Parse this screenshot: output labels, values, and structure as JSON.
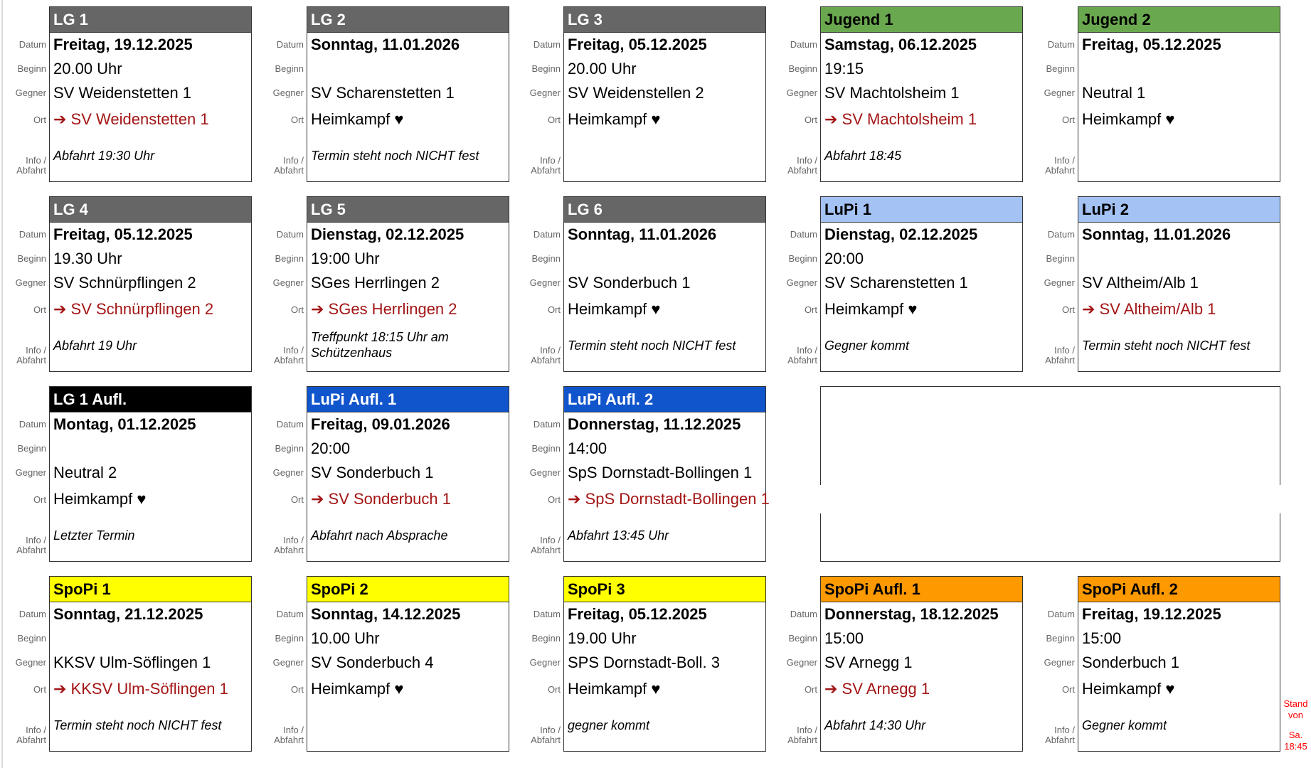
{
  "labels": {
    "datum": "Datum",
    "beginn": "Beginn",
    "gegner": "Gegner",
    "ort": "Ort",
    "info1": "Info /",
    "info2": "Abfahrt"
  },
  "cards": [
    {
      "team": "LG 1",
      "header_color": "#666666",
      "header_text": "#ffffff",
      "datum": "Freitag, 19.12.2025",
      "beginn": "20.00 Uhr",
      "gegner": "SV Weidenstetten 1",
      "ort": "➔ SV Weidenstetten 1",
      "away": true,
      "info": "Abfahrt 19:30 Uhr"
    },
    {
      "team": "LG 2",
      "header_color": "#666666",
      "header_text": "#ffffff",
      "datum": "Sonntag, 11.01.2026",
      "beginn": "",
      "gegner": "SV Scharenstetten 1",
      "ort": "Heimkampf ♥",
      "away": false,
      "info": "Termin steht noch NICHT fest"
    },
    {
      "team": "LG 3",
      "header_color": "#666666",
      "header_text": "#ffffff",
      "datum": "Freitag, 05.12.2025",
      "beginn": "20.00 Uhr",
      "gegner": "SV Weidenstellen 2",
      "ort": "Heimkampf ♥",
      "away": false,
      "info": ""
    },
    {
      "team": "Jugend 1",
      "header_color": "#6aa84f",
      "header_text": "#000000",
      "datum": "Samstag, 06.12.2025",
      "beginn": "19:15",
      "gegner": "SV Machtolsheim 1",
      "ort": "➔ SV Machtolsheim 1",
      "away": true,
      "info": "Abfahrt 18:45"
    },
    {
      "team": "Jugend 2",
      "header_color": "#6aa84f",
      "header_text": "#000000",
      "datum": "Freitag, 05.12.2025",
      "beginn": "",
      "gegner": "Neutral 1",
      "ort": "Heimkampf ♥",
      "away": false,
      "info": ""
    },
    {
      "team": "LG 4",
      "header_color": "#666666",
      "header_text": "#ffffff",
      "datum": "Freitag, 05.12.2025",
      "beginn": "19.30 Uhr",
      "gegner": "SV Schnürpflingen 2",
      "ort": "➔ SV Schnürpflingen 2",
      "away": true,
      "info": "Abfahrt 19 Uhr"
    },
    {
      "team": "LG 5",
      "header_color": "#666666",
      "header_text": "#ffffff",
      "datum": "Dienstag, 02.12.2025",
      "beginn": "19:00 Uhr",
      "gegner": "SGes Herrlingen 2",
      "ort": "➔ SGes Herrlingen 2",
      "away": true,
      "info": "Treffpunkt 18:15 Uhr am Schützenhaus"
    },
    {
      "team": "LG 6",
      "header_color": "#666666",
      "header_text": "#ffffff",
      "datum": "Sonntag, 11.01.2026",
      "beginn": "",
      "gegner": "SV Sonderbuch 1",
      "ort": "Heimkampf ♥",
      "away": false,
      "info": "Termin steht noch NICHT fest"
    },
    {
      "team": "LuPi 1",
      "header_color": "#a4c2f4",
      "header_text": "#000000",
      "datum": "Dienstag, 02.12.2025",
      "beginn": "20:00",
      "gegner": "SV Scharenstetten 1",
      "ort": "Heimkampf ♥",
      "away": false,
      "info": "Gegner kommt"
    },
    {
      "team": "LuPi 2",
      "header_color": "#a4c2f4",
      "header_text": "#000000",
      "datum": "Sonntag, 11.01.2026",
      "beginn": "",
      "gegner": "SV Altheim/Alb 1",
      "ort": "➔ SV Altheim/Alb 1",
      "away": true,
      "info": "Termin steht noch NICHT fest"
    },
    {
      "team": "LG 1 Aufl.",
      "header_color": "#000000",
      "header_text": "#ffffff",
      "datum": "Montag, 01.12.2025",
      "beginn": "",
      "gegner": "Neutral 2",
      "ort": "Heimkampf ♥",
      "away": false,
      "info": "Letzter Termin"
    },
    {
      "team": "LuPi Aufl. 1",
      "header_color": "#1155cc",
      "header_text": "#ffffff",
      "datum": "Freitag, 09.01.2026",
      "beginn": "20:00",
      "gegner": "SV Sonderbuch 1",
      "ort": "➔ SV Sonderbuch 1",
      "away": true,
      "info": "Abfahrt nach Absprache"
    },
    {
      "team": "LuPi Aufl. 2",
      "header_color": "#1155cc",
      "header_text": "#ffffff",
      "datum": "Donnerstag, 11.12.2025",
      "beginn": "14:00",
      "gegner": "SpS Dornstadt-Bollingen 1",
      "ort": "➔ SpS Dornstadt-Bollingen 1",
      "away": true,
      "info": "Abfahrt 13:45 Uhr"
    },
    null,
    null,
    {
      "team": "SpoPi 1",
      "header_color": "#ffff00",
      "header_text": "#000000",
      "datum": "Sonntag, 21.12.2025",
      "beginn": "",
      "gegner": "KKSV Ulm-Söflingen 1",
      "ort": "➔ KKSV Ulm-Söflingen 1",
      "away": true,
      "info": "Termin steht noch NICHT fest"
    },
    {
      "team": "SpoPi 2",
      "header_color": "#ffff00",
      "header_text": "#000000",
      "datum": "Sonntag, 14.12.2025",
      "beginn": "10.00 Uhr",
      "gegner": "SV Sonderbuch 4",
      "ort": "Heimkampf ♥",
      "away": false,
      "info": ""
    },
    {
      "team": "SpoPi 3",
      "header_color": "#ffff00",
      "header_text": "#000000",
      "datum": "Freitag, 05.12.2025",
      "beginn": "19.00 Uhr",
      "gegner": "SPS Dornstadt-Boll. 3",
      "ort": "Heimkampf ♥",
      "away": false,
      "info": "gegner kommt"
    },
    {
      "team": "SpoPi Aufl. 1",
      "header_color": "#ff9900",
      "header_text": "#000000",
      "datum": "Donnerstag, 18.12.2025",
      "beginn": "15:00",
      "gegner": "SV Arnegg 1",
      "ort": "➔ SV Arnegg 1",
      "away": true,
      "info": "Abfahrt 14:30 Uhr"
    },
    {
      "team": "SpoPi Aufl. 2",
      "header_color": "#ff9900",
      "header_text": "#000000",
      "datum": "Freitag, 19.12.2025",
      "beginn": "15:00",
      "gegner": "Sonderbuch 1",
      "ort": "Heimkampf ♥",
      "away": false,
      "info": "Gegner kommt"
    }
  ],
  "stand": {
    "line1": "Stand",
    "line2": "von",
    "line3": "Sa.",
    "line4": "18:45"
  }
}
